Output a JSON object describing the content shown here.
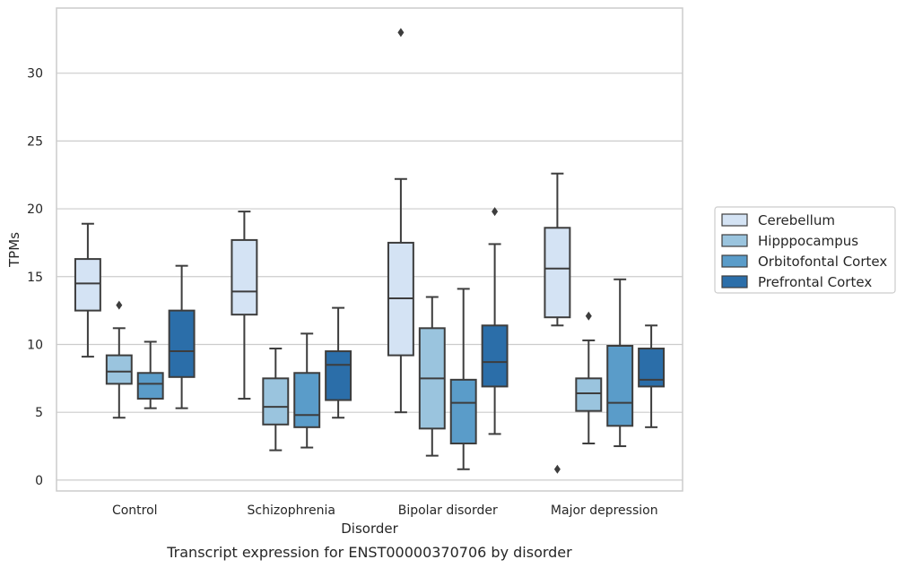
{
  "caption": "Transcript expression for ENST00000370706 by disorder",
  "chart_data": {
    "type": "boxplot",
    "xlabel": "Disorder",
    "ylabel": "TPMs",
    "ylim": [
      -0.8,
      34.8
    ],
    "yticks": [
      0,
      5,
      10,
      15,
      20,
      25,
      30
    ],
    "grid": "horizontal",
    "legend_position": "right",
    "categories": [
      "Control",
      "Schizophrenia",
      "Bipolar disorder",
      "Major depression"
    ],
    "series": [
      {
        "name": "Cerebellum",
        "color": "#d4e3f4",
        "boxes": [
          {
            "whisker_low": 9.1,
            "q1": 12.5,
            "median": 14.5,
            "q3": 16.3,
            "whisker_high": 18.9,
            "outliers": []
          },
          {
            "whisker_low": 6.0,
            "q1": 12.2,
            "median": 13.9,
            "q3": 17.7,
            "whisker_high": 19.8,
            "outliers": []
          },
          {
            "whisker_low": 5.0,
            "q1": 9.2,
            "median": 13.4,
            "q3": 17.5,
            "whisker_high": 22.2,
            "outliers": [
              33.0
            ]
          },
          {
            "whisker_low": 11.4,
            "q1": 12.0,
            "median": 15.6,
            "q3": 18.6,
            "whisker_high": 22.6,
            "outliers": [
              0.8
            ]
          }
        ]
      },
      {
        "name": "Hipppocampus",
        "color": "#9ac4de",
        "boxes": [
          {
            "whisker_low": 4.6,
            "q1": 7.1,
            "median": 8.0,
            "q3": 9.2,
            "whisker_high": 11.2,
            "outliers": [
              12.9
            ]
          },
          {
            "whisker_low": 2.2,
            "q1": 4.1,
            "median": 5.4,
            "q3": 7.5,
            "whisker_high": 9.7,
            "outliers": []
          },
          {
            "whisker_low": 1.8,
            "q1": 3.8,
            "median": 7.5,
            "q3": 11.2,
            "whisker_high": 13.5,
            "outliers": []
          },
          {
            "whisker_low": 2.7,
            "q1": 5.1,
            "median": 6.4,
            "q3": 7.5,
            "whisker_high": 10.3,
            "outliers": [
              12.1
            ]
          }
        ]
      },
      {
        "name": "Orbitofontal Cortex",
        "color": "#5a9cc9",
        "boxes": [
          {
            "whisker_low": 5.3,
            "q1": 6.0,
            "median": 7.1,
            "q3": 7.9,
            "whisker_high": 10.2,
            "outliers": []
          },
          {
            "whisker_low": 2.4,
            "q1": 3.9,
            "median": 4.8,
            "q3": 7.9,
            "whisker_high": 10.8,
            "outliers": []
          },
          {
            "whisker_low": 0.8,
            "q1": 2.7,
            "median": 5.7,
            "q3": 7.4,
            "whisker_high": 14.1,
            "outliers": []
          },
          {
            "whisker_low": 2.5,
            "q1": 4.0,
            "median": 5.7,
            "q3": 9.9,
            "whisker_high": 14.8,
            "outliers": []
          }
        ]
      },
      {
        "name": "Prefrontal Cortex",
        "color": "#2b6ea9",
        "boxes": [
          {
            "whisker_low": 5.3,
            "q1": 7.6,
            "median": 9.5,
            "q3": 12.5,
            "whisker_high": 15.8,
            "outliers": []
          },
          {
            "whisker_low": 4.6,
            "q1": 5.9,
            "median": 8.5,
            "q3": 9.5,
            "whisker_high": 12.7,
            "outliers": []
          },
          {
            "whisker_low": 3.4,
            "q1": 6.9,
            "median": 8.7,
            "q3": 11.4,
            "whisker_high": 17.4,
            "outliers": [
              19.8
            ]
          },
          {
            "whisker_low": 3.9,
            "q1": 6.9,
            "median": 7.4,
            "q3": 9.7,
            "whisker_high": 11.4,
            "outliers": []
          }
        ]
      }
    ]
  }
}
